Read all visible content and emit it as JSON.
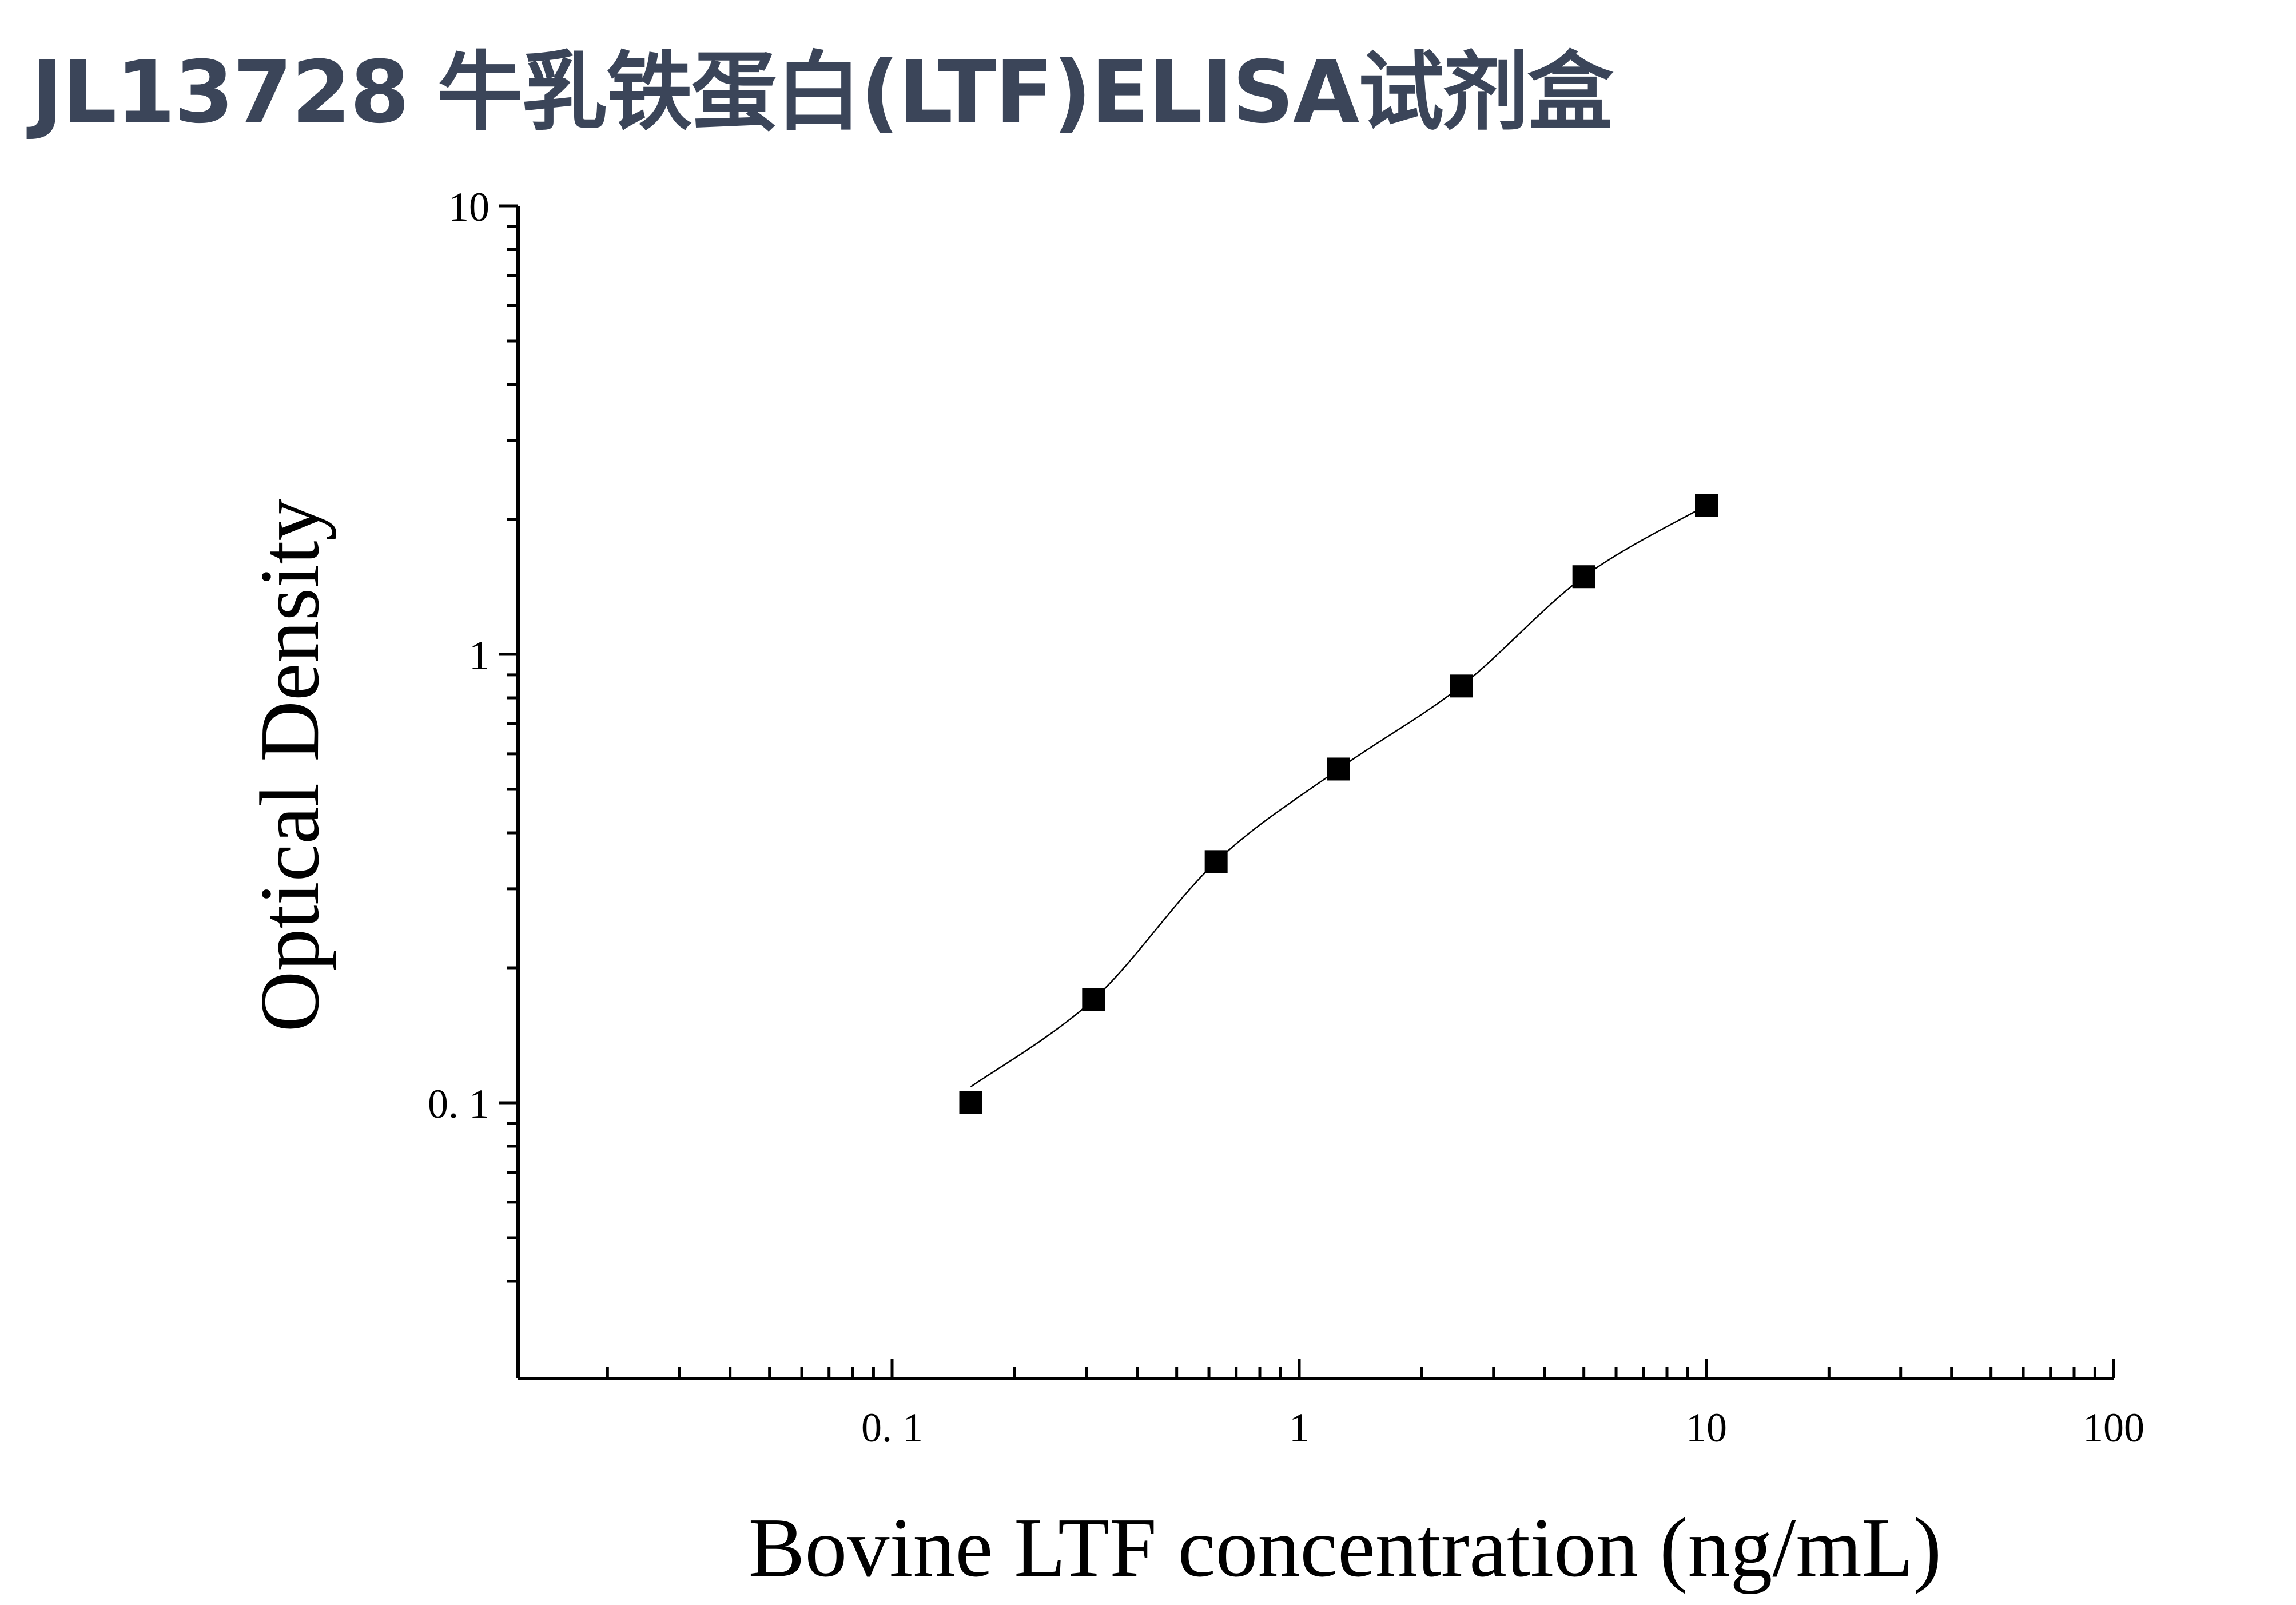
{
  "title": "JL13728 牛乳铁蛋白(LTF)ELISA试剂盒",
  "chart_data": {
    "type": "scatter",
    "title": "JL13728 牛乳铁蛋白(LTF)ELISA试剂盒",
    "xlabel": "Bovine LTF concentration (ng/mL)",
    "ylabel": "Optical Density",
    "xscale": "log",
    "yscale": "log",
    "xlim": [
      0.01,
      100
    ],
    "ylim": [
      0.03,
      10
    ],
    "xticks": [
      {
        "value": 0.1,
        "label": "0. 1"
      },
      {
        "value": 1,
        "label": "1"
      },
      {
        "value": 10,
        "label": "10"
      },
      {
        "value": 100,
        "label": "100"
      }
    ],
    "yticks": [
      {
        "value": 0.1,
        "label": "0. 1"
      },
      {
        "value": 1,
        "label": "1"
      },
      {
        "value": 10,
        "label": "10"
      }
    ],
    "marker": "square",
    "has_fit_curve": true,
    "grid": false,
    "series": [
      {
        "points": [
          {
            "x": 0.156,
            "y": 0.1
          },
          {
            "x": 0.3125,
            "y": 0.17
          },
          {
            "x": 0.625,
            "y": 0.345
          },
          {
            "x": 1.25,
            "y": 0.555
          },
          {
            "x": 2.5,
            "y": 0.85
          },
          {
            "x": 5,
            "y": 1.49
          },
          {
            "x": 10,
            "y": 2.15
          }
        ]
      }
    ]
  }
}
